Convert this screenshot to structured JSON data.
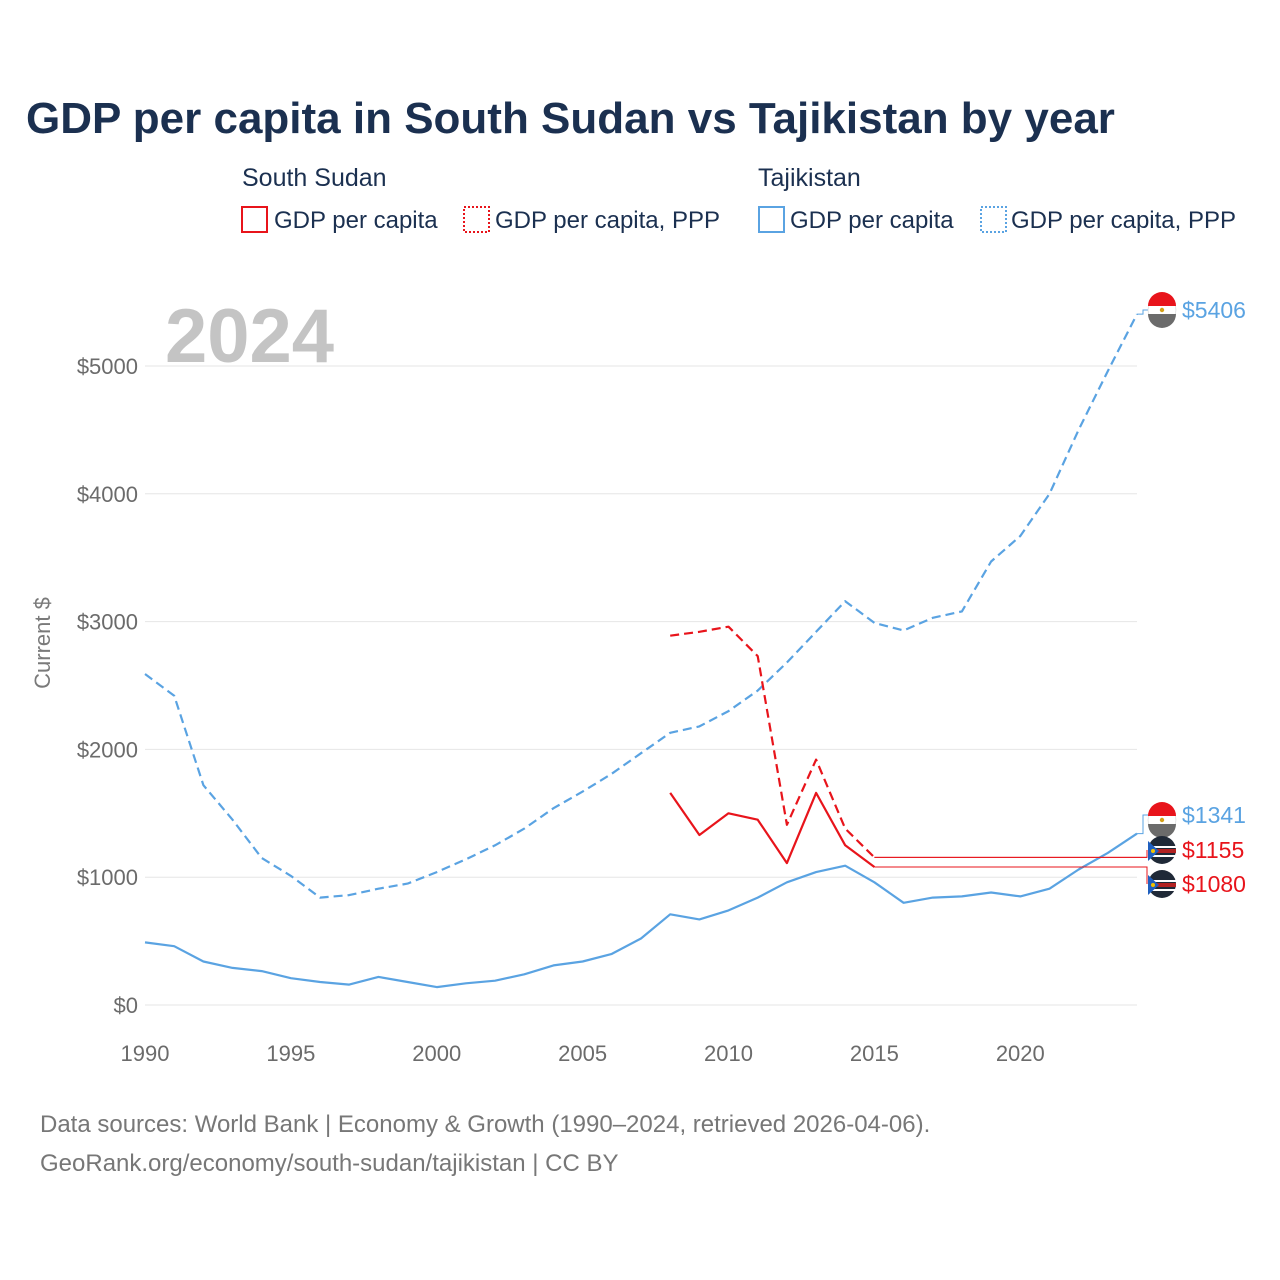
{
  "title": "GDP per capita in South Sudan vs Tajikistan by year",
  "colors": {
    "south_sudan": "#e8141b",
    "tajikistan": "#5aa3e2",
    "grid": "#e6e6e6",
    "text": "#1b3050"
  },
  "legend": {
    "groups": [
      {
        "name": "South Sudan",
        "items": [
          {
            "label": "GDP per capita",
            "style": "solid",
            "color_key": "south_sudan"
          },
          {
            "label": "GDP per capita, PPP",
            "style": "dotted",
            "color_key": "south_sudan"
          }
        ]
      },
      {
        "name": "Tajikistan",
        "items": [
          {
            "label": "GDP per capita",
            "style": "solid",
            "color_key": "tajikistan"
          },
          {
            "label": "GDP per capita, PPP",
            "style": "dotted",
            "color_key": "tajikistan"
          }
        ]
      }
    ]
  },
  "year_watermark": "2024",
  "end_labels": [
    {
      "text": "$5406",
      "value": 5406,
      "color_key": "tajikistan",
      "flag": "tajikistan-flag-icon"
    },
    {
      "text": "$1341",
      "value": 1341,
      "color_key": "tajikistan",
      "flag": "tajikistan-flag-icon"
    },
    {
      "text": "$1155",
      "value": 1155,
      "color_key": "south_sudan",
      "flag": "south-sudan-flag-icon"
    },
    {
      "text": "$1080",
      "value": 1080,
      "color_key": "south_sudan",
      "flag": "south-sudan-flag-icon"
    }
  ],
  "chart_data": {
    "type": "line",
    "title": "GDP per capita in South Sudan vs Tajikistan by year",
    "xlabel": "",
    "ylabel": "Current $",
    "xlim": [
      1990,
      2024
    ],
    "ylim": [
      0,
      5500
    ],
    "x_ticks": [
      1990,
      1995,
      2000,
      2005,
      2010,
      2015,
      2020
    ],
    "x_tick_labels": [
      "1990",
      "1995",
      "2000",
      "2005",
      "2010",
      "2015",
      "2020"
    ],
    "y_ticks": [
      0,
      1000,
      2000,
      3000,
      4000,
      5000
    ],
    "y_tick_labels": [
      "$0",
      "$1000",
      "$2000",
      "$3000",
      "$4000",
      "$5000"
    ],
    "grid": true,
    "series": [
      {
        "name": "Tajikistan GDP per capita, PPP",
        "color_key": "tajikistan",
        "dash": true,
        "x": [
          1990,
          1991,
          1992,
          1993,
          1994,
          1995,
          1996,
          1997,
          1998,
          1999,
          2000,
          2001,
          2002,
          2003,
          2004,
          2005,
          2006,
          2007,
          2008,
          2009,
          2010,
          2011,
          2012,
          2013,
          2014,
          2015,
          2016,
          2017,
          2018,
          2019,
          2020,
          2021,
          2022,
          2023,
          2024
        ],
        "values": [
          2590,
          2420,
          1720,
          1450,
          1150,
          1010,
          840,
          860,
          910,
          950,
          1040,
          1140,
          1250,
          1380,
          1540,
          1670,
          1810,
          1970,
          2130,
          2180,
          2300,
          2460,
          2680,
          2920,
          3160,
          2990,
          2930,
          3030,
          3080,
          3470,
          3670,
          4000,
          4500,
          4960,
          5406
        ]
      },
      {
        "name": "Tajikistan GDP per capita",
        "color_key": "tajikistan",
        "dash": false,
        "x": [
          1990,
          1991,
          1992,
          1993,
          1994,
          1995,
          1996,
          1997,
          1998,
          1999,
          2000,
          2001,
          2002,
          2003,
          2004,
          2005,
          2006,
          2007,
          2008,
          2009,
          2010,
          2011,
          2012,
          2013,
          2014,
          2015,
          2016,
          2017,
          2018,
          2019,
          2020,
          2021,
          2022,
          2023,
          2024
        ],
        "values": [
          490,
          460,
          340,
          290,
          265,
          210,
          180,
          160,
          220,
          180,
          140,
          170,
          190,
          240,
          310,
          340,
          400,
          520,
          710,
          670,
          740,
          840,
          960,
          1040,
          1090,
          960,
          800,
          840,
          850,
          880,
          850,
          910,
          1060,
          1190,
          1341
        ]
      },
      {
        "name": "South Sudan GDP per capita, PPP",
        "color_key": "south_sudan",
        "dash": true,
        "x": [
          2008,
          2009,
          2010,
          2011,
          2012,
          2013,
          2014,
          2015
        ],
        "values": [
          2890,
          2920,
          2960,
          2730,
          1410,
          1920,
          1380,
          1155
        ]
      },
      {
        "name": "South Sudan GDP per capita",
        "color_key": "south_sudan",
        "dash": false,
        "x": [
          2008,
          2009,
          2010,
          2011,
          2012,
          2013,
          2014,
          2015
        ],
        "values": [
          1660,
          1330,
          1500,
          1450,
          1110,
          1660,
          1250,
          1080
        ]
      }
    ]
  },
  "footer": {
    "line1": "Data sources: World Bank | Economy & Growth (1990–2024, retrieved 2026-04-06).",
    "line2": "GeoRank.org/economy/south-sudan/tajikistan | CC BY"
  }
}
